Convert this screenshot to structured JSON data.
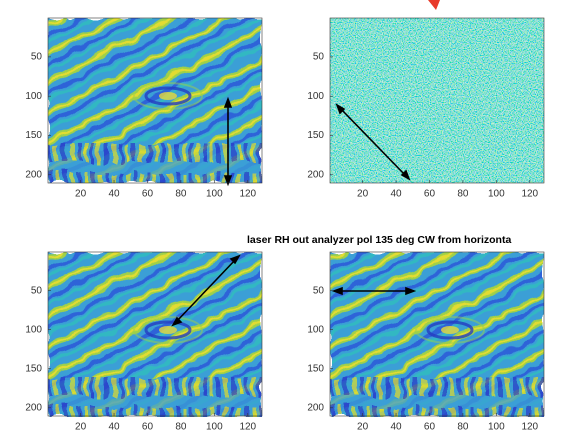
{
  "chart_data": [
    {
      "type": "image",
      "xlim": [
        0.5,
        128.5
      ],
      "ylim": [
        0.5,
        210.5
      ],
      "xticks": [
        20,
        40,
        60,
        80,
        100,
        120
      ],
      "yticks": [
        50,
        100,
        150,
        200
      ]
    },
    {
      "type": "image",
      "xlim": [
        0.5,
        128.5
      ],
      "ylim": [
        0.5,
        210.5
      ],
      "xticks": [
        20,
        40,
        60,
        80,
        100,
        120
      ],
      "yticks": [
        50,
        100,
        150,
        200
      ]
    },
    {
      "type": "image",
      "xlim": [
        0.5,
        128.5
      ],
      "ylim": [
        0.5,
        210.5
      ],
      "xticks": [
        20,
        40,
        60,
        80,
        100,
        120
      ],
      "yticks": [
        50,
        100,
        150,
        200
      ]
    },
    {
      "type": "image",
      "title": "laser RH out analyzer  pol 135 deg CW from horizonta",
      "xlim": [
        0.5,
        128.5
      ],
      "ylim": [
        0.5,
        210.5
      ],
      "xticks": [
        20,
        40,
        60,
        80,
        100,
        120
      ],
      "yticks": [
        50,
        100,
        150,
        200
      ]
    }
  ]
}
